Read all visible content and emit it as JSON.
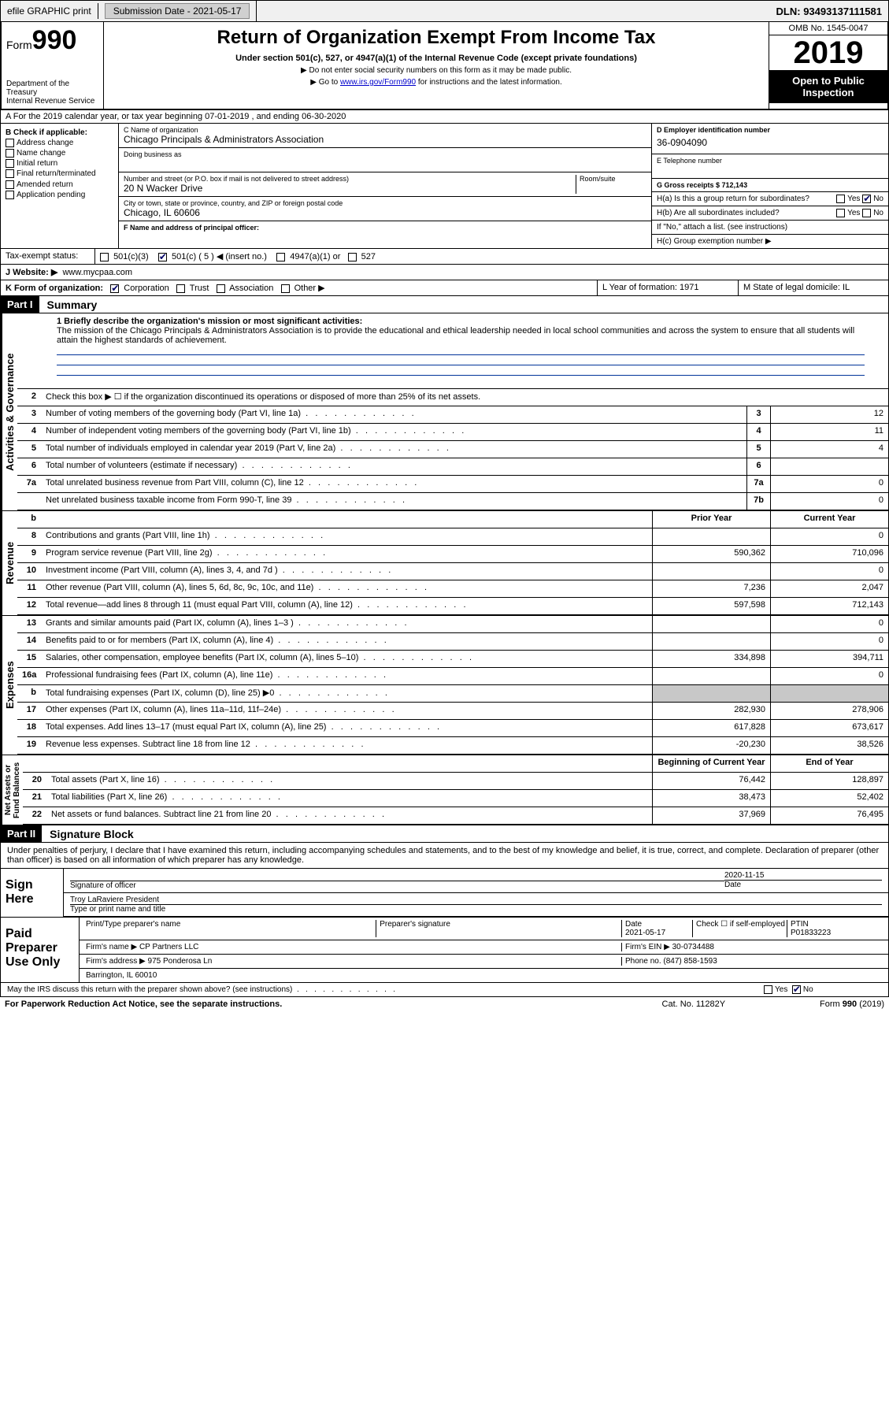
{
  "topbar": {
    "efile": "efile GRAPHIC print",
    "submission_label": "Submission Date - 2021-05-17",
    "dln": "DLN: 93493137111581"
  },
  "header": {
    "form_word": "Form",
    "form_num": "990",
    "dept": "Department of the Treasury\nInternal Revenue Service",
    "title": "Return of Organization Exempt From Income Tax",
    "subtitle": "Under section 501(c), 527, or 4947(a)(1) of the Internal Revenue Code (except private foundations)",
    "note1": "▶ Do not enter social security numbers on this form as it may be made public.",
    "note2_pre": "▶ Go to ",
    "note2_link": "www.irs.gov/Form990",
    "note2_post": " for instructions and the latest information.",
    "omb": "OMB No. 1545-0047",
    "year": "2019",
    "public1": "Open to Public",
    "public2": "Inspection"
  },
  "row_a": "A For the 2019 calendar year, or tax year beginning 07-01-2019    , and ending 06-30-2020",
  "section_b": {
    "check_label": "B Check if applicable:",
    "opts": [
      "Address change",
      "Name change",
      "Initial return",
      "Final return/terminated",
      "Amended return",
      "Application pending"
    ],
    "c_label": "C Name of organization",
    "c_name": "Chicago Principals & Administrators Association",
    "dba_label": "Doing business as",
    "addr_label": "Number and street (or P.O. box if mail is not delivered to street address)",
    "addr": "20 N Wacker Drive",
    "room_label": "Room/suite",
    "city_label": "City or town, state or province, country, and ZIP or foreign postal code",
    "city": "Chicago, IL  60606",
    "f_label": "F Name and address of principal officer:",
    "d_label": "D Employer identification number",
    "d_val": "36-0904090",
    "e_label": "E Telephone number",
    "g_label": "G Gross receipts $ 712,143",
    "h_a": "H(a)  Is this a group return for subordinates?",
    "h_b": "H(b)  Are all subordinates included?",
    "h_note": "If \"No,\" attach a list. (see instructions)",
    "h_c": "H(c)  Group exemption number ▶",
    "yes": "Yes",
    "no": "No"
  },
  "tax_exempt": {
    "label": "Tax-exempt status:",
    "opts": [
      "501(c)(3)",
      "501(c) ( 5 ) ◀ (insert no.)",
      "4947(a)(1) or",
      "527"
    ]
  },
  "website": {
    "label": "J   Website: ▶",
    "val": "www.mycpaa.com"
  },
  "row_k": {
    "label": "K Form of organization:",
    "opts": [
      "Corporation",
      "Trust",
      "Association",
      "Other ▶"
    ],
    "l_label": "L Year of formation: 1971",
    "m_label": "M State of legal domicile: IL"
  },
  "part1": {
    "tag": "Part I",
    "title": "Summary",
    "line1_label": "1  Briefly describe the organization's mission or most significant activities:",
    "mission": "The mission of the Chicago Principals & Administrators Association is to provide the educational and ethical leadership needed in local school communities and across the system to ensure that all students will attain the highest standards of achievement.",
    "line2": "Check this box ▶ ☐  if the organization discontinued its operations or disposed of more than 25% of its net assets.",
    "lines_gov": [
      {
        "n": "3",
        "d": "Number of voting members of the governing body (Part VI, line 1a)",
        "box": "3",
        "v": "12"
      },
      {
        "n": "4",
        "d": "Number of independent voting members of the governing body (Part VI, line 1b)",
        "box": "4",
        "v": "11"
      },
      {
        "n": "5",
        "d": "Total number of individuals employed in calendar year 2019 (Part V, line 2a)",
        "box": "5",
        "v": "4"
      },
      {
        "n": "6",
        "d": "Total number of volunteers (estimate if necessary)",
        "box": "6",
        "v": ""
      },
      {
        "n": "7a",
        "d": "Total unrelated business revenue from Part VIII, column (C), line 12",
        "box": "7a",
        "v": "0"
      },
      {
        "n": "",
        "d": "Net unrelated business taxable income from Form 990-T, line 39",
        "box": "7b",
        "v": "0"
      }
    ],
    "col_prior": "Prior Year",
    "col_current": "Current Year",
    "lines_rev": [
      {
        "n": "8",
        "d": "Contributions and grants (Part VIII, line 1h)",
        "p": "",
        "c": "0"
      },
      {
        "n": "9",
        "d": "Program service revenue (Part VIII, line 2g)",
        "p": "590,362",
        "c": "710,096"
      },
      {
        "n": "10",
        "d": "Investment income (Part VIII, column (A), lines 3, 4, and 7d )",
        "p": "",
        "c": "0"
      },
      {
        "n": "11",
        "d": "Other revenue (Part VIII, column (A), lines 5, 6d, 8c, 9c, 10c, and 11e)",
        "p": "7,236",
        "c": "2,047"
      },
      {
        "n": "12",
        "d": "Total revenue—add lines 8 through 11 (must equal Part VIII, column (A), line 12)",
        "p": "597,598",
        "c": "712,143"
      }
    ],
    "lines_exp": [
      {
        "n": "13",
        "d": "Grants and similar amounts paid (Part IX, column (A), lines 1–3 )",
        "p": "",
        "c": "0"
      },
      {
        "n": "14",
        "d": "Benefits paid to or for members (Part IX, column (A), line 4)",
        "p": "",
        "c": "0"
      },
      {
        "n": "15",
        "d": "Salaries, other compensation, employee benefits (Part IX, column (A), lines 5–10)",
        "p": "334,898",
        "c": "394,711"
      },
      {
        "n": "16a",
        "d": "Professional fundraising fees (Part IX, column (A), line 11e)",
        "p": "",
        "c": "0"
      },
      {
        "n": "b",
        "d": "Total fundraising expenses (Part IX, column (D), line 25) ▶0",
        "p": "__SHADE__",
        "c": "__SHADE__"
      },
      {
        "n": "17",
        "d": "Other expenses (Part IX, column (A), lines 11a–11d, 11f–24e)",
        "p": "282,930",
        "c": "278,906"
      },
      {
        "n": "18",
        "d": "Total expenses. Add lines 13–17 (must equal Part IX, column (A), line 25)",
        "p": "617,828",
        "c": "673,617"
      },
      {
        "n": "19",
        "d": "Revenue less expenses. Subtract line 18 from line 12",
        "p": "-20,230",
        "c": "38,526"
      }
    ],
    "col_begin": "Beginning of Current Year",
    "col_end": "End of Year",
    "lines_net": [
      {
        "n": "20",
        "d": "Total assets (Part X, line 16)",
        "p": "76,442",
        "c": "128,897"
      },
      {
        "n": "21",
        "d": "Total liabilities (Part X, line 26)",
        "p": "38,473",
        "c": "52,402"
      },
      {
        "n": "22",
        "d": "Net assets or fund balances. Subtract line 21 from line 20",
        "p": "37,969",
        "c": "76,495"
      }
    ],
    "vtabs": {
      "gov": "Activities & Governance",
      "rev": "Revenue",
      "exp": "Expenses",
      "net": "Net Assets or\nFund Balances"
    }
  },
  "part2": {
    "tag": "Part II",
    "title": "Signature Block",
    "decl": "Under penalties of perjury, I declare that I have examined this return, including accompanying schedules and statements, and to the best of my knowledge and belief, it is true, correct, and complete. Declaration of preparer (other than officer) is based on all information of which preparer has any knowledge.",
    "sign_here": "Sign Here",
    "sig_officer": "Signature of officer",
    "date": "2020-11-15",
    "date_label": "Date",
    "officer_name": "Troy LaRaviere  President",
    "officer_label": "Type or print name and title",
    "paid": "Paid Preparer Use Only",
    "prep_name_label": "Print/Type preparer's name",
    "prep_sig_label": "Preparer's signature",
    "prep_date_label": "Date",
    "prep_date": "2021-05-17",
    "check_self": "Check ☐ if self-employed",
    "ptin_label": "PTIN",
    "ptin": "P01833223",
    "firm_name_label": "Firm's name    ▶",
    "firm_name": "CP Partners LLC",
    "firm_ein_label": "Firm's EIN ▶",
    "firm_ein": "30-0734488",
    "firm_addr_label": "Firm's address ▶",
    "firm_addr1": "975 Ponderosa Ln",
    "firm_addr2": "Barrington, IL  60010",
    "phone_label": "Phone no.",
    "phone": "(847) 858-1593",
    "discuss": "May the IRS discuss this return with the preparer shown above? (see instructions)"
  },
  "footer": {
    "left": "For Paperwork Reduction Act Notice, see the separate instructions.",
    "mid": "Cat. No. 11282Y",
    "right": "Form 990 (2019)"
  }
}
